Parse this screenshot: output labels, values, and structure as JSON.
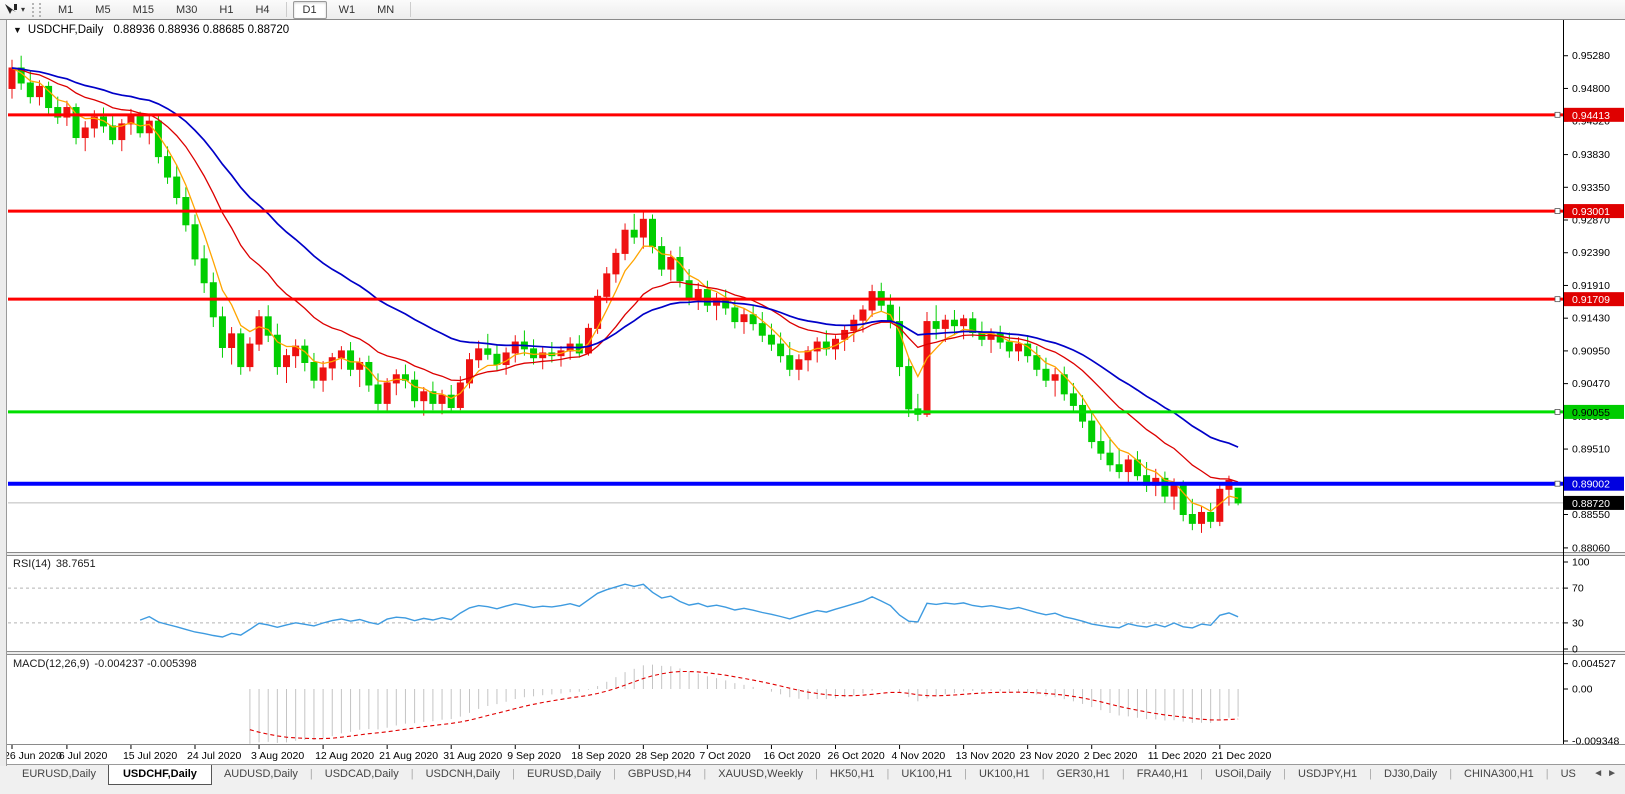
{
  "toolbar": {
    "timeframes": [
      "M1",
      "M5",
      "M15",
      "M30",
      "H1",
      "H4",
      "D1",
      "W1",
      "MN"
    ],
    "active": "D1"
  },
  "chart": {
    "title_symbol": "USDCHF,Daily",
    "ohlc": "0.88936 0.88936 0.88685 0.88720"
  },
  "rsi": {
    "name": "RSI(14)",
    "value": "38.7651"
  },
  "macd": {
    "name": "MACD(12,26,9)",
    "values": "-0.004237 -0.005398"
  },
  "tabs": {
    "items": [
      "EURUSD,Daily",
      "USDCHF,Daily",
      "AUDUSD,Daily",
      "USDCAD,Daily",
      "USDCNH,Daily",
      "EURUSD,Daily",
      "GBPUSD,H4",
      "XAUUSD,Weekly",
      "HK50,H1",
      "UK100,H1",
      "UK100,H1",
      "GER30,H1",
      "FRA40,H1",
      "USOil,Daily",
      "USDJPY,H1",
      "DJ30,Daily",
      "CHINA300,H1",
      "US"
    ],
    "active_index": 1,
    "scroll_left": "◄",
    "scroll_right": "►"
  },
  "chart_data": {
    "type": "candlestick",
    "symbol": "USDCHF",
    "timeframe": "Daily",
    "price_range": [
      0.88,
      0.9576
    ],
    "y_ticks": [
      "0.95280",
      "0.94800",
      "0.94320",
      "0.93830",
      "0.93350",
      "0.92870",
      "0.92390",
      "0.91910",
      "0.91430",
      "0.90950",
      "0.90470",
      "0.89990",
      "0.89510",
      "0.89030",
      "0.88550",
      "0.88060"
    ],
    "x_labels": [
      [
        0,
        "26 Jun 2020"
      ],
      [
        6,
        "6 Jul 2020"
      ],
      [
        13,
        "15 Jul 2020"
      ],
      [
        20,
        "24 Jul 2020"
      ],
      [
        27,
        "3 Aug 2020"
      ],
      [
        34,
        "12 Aug 2020"
      ],
      [
        41,
        "21 Aug 2020"
      ],
      [
        48,
        "31 Aug 2020"
      ],
      [
        55,
        "9 Sep 2020"
      ],
      [
        62,
        "18 Sep 2020"
      ],
      [
        69,
        "28 Sep 2020"
      ],
      [
        76,
        "7 Oct 2020"
      ],
      [
        83,
        "16 Oct 2020"
      ],
      [
        90,
        "26 Oct 2020"
      ],
      [
        97,
        "4 Nov 2020"
      ],
      [
        104,
        "13 Nov 2020"
      ],
      [
        111,
        "23 Nov 2020"
      ],
      [
        118,
        "2 Dec 2020"
      ],
      [
        125,
        "11 Dec 2020"
      ],
      [
        132,
        "21 Dec 2020"
      ]
    ],
    "hlines": [
      {
        "price": 0.94413,
        "label": "0.94413",
        "line": "#FF0000",
        "badge": "#DF0000",
        "text": "#FFFFFF",
        "w": 3
      },
      {
        "price": 0.93001,
        "label": "0.93001",
        "line": "#FF0000",
        "badge": "#DF0000",
        "text": "#FFFFFF",
        "w": 3
      },
      {
        "price": 0.91709,
        "label": "0.91709",
        "line": "#FF0000",
        "badge": "#DF0000",
        "text": "#FFFFFF",
        "w": 3
      },
      {
        "price": 0.90055,
        "label": "0.90055",
        "line": "#00DF00",
        "badge": "#00CC00",
        "text": "#000000",
        "w": 3
      },
      {
        "price": 0.89002,
        "label": "0.89002",
        "line": "#0000FF",
        "badge": "#0000E0",
        "text": "#FFFFFF",
        "w": 4
      }
    ],
    "current_price": {
      "price": 0.8872,
      "label": "0.88720",
      "line": "#BBBBBB",
      "badge": "#000000",
      "text": "#FFFFFF"
    },
    "colors": {
      "bull": "#EE1111",
      "bear": "#00CE00",
      "ma_fast": "#FFA500",
      "ma_mid": "#DC0000",
      "ma_slow": "#0000C8",
      "rsi_line": "#3E9BE0",
      "rsi_dash": "#B4B4B4",
      "macd_hist": "#C4C4C4",
      "macd_signal": "#E00000"
    },
    "ma_periods": {
      "fast": 5,
      "mid": 15,
      "slow": 30
    },
    "rsi": {
      "period": 14,
      "ticks": [
        "100",
        "70",
        "30",
        "0"
      ],
      "tick_vals": [
        100,
        70,
        30,
        0
      ],
      "dash_levels": [
        70,
        30
      ]
    },
    "macd": {
      "fast": 12,
      "slow": 26,
      "signal": 9,
      "axis_labels": [
        "0.004527",
        "0.00",
        "-0.009348"
      ],
      "axis_vals": [
        0.004527,
        0,
        -0.009348
      ]
    },
    "candles": [
      [
        0.948,
        0.9522,
        0.9465,
        0.951
      ],
      [
        0.951,
        0.9528,
        0.9478,
        0.9488
      ],
      [
        0.9488,
        0.9505,
        0.9458,
        0.9468
      ],
      [
        0.9468,
        0.9492,
        0.9455,
        0.9483
      ],
      [
        0.9483,
        0.949,
        0.9442,
        0.9452
      ],
      [
        0.9452,
        0.9468,
        0.9428,
        0.9438
      ],
      [
        0.9438,
        0.9462,
        0.9425,
        0.9452
      ],
      [
        0.9452,
        0.9458,
        0.9398,
        0.9408
      ],
      [
        0.9408,
        0.9432,
        0.9388,
        0.9422
      ],
      [
        0.9422,
        0.9448,
        0.9408,
        0.9438
      ],
      [
        0.9438,
        0.9452,
        0.9415,
        0.9425
      ],
      [
        0.9425,
        0.9442,
        0.9398,
        0.9405
      ],
      [
        0.9405,
        0.9435,
        0.9388,
        0.9428
      ],
      [
        0.9428,
        0.945,
        0.9412,
        0.944
      ],
      [
        0.944,
        0.9446,
        0.9408,
        0.9415
      ],
      [
        0.9415,
        0.9442,
        0.9398,
        0.9432
      ],
      [
        0.9432,
        0.944,
        0.937,
        0.938
      ],
      [
        0.938,
        0.9395,
        0.934,
        0.935
      ],
      [
        0.935,
        0.9368,
        0.931,
        0.932
      ],
      [
        0.932,
        0.9335,
        0.927,
        0.928
      ],
      [
        0.928,
        0.9295,
        0.922,
        0.923
      ],
      [
        0.923,
        0.925,
        0.918,
        0.9195
      ],
      [
        0.9195,
        0.921,
        0.913,
        0.9145
      ],
      [
        0.9145,
        0.916,
        0.9085,
        0.91
      ],
      [
        0.91,
        0.913,
        0.9075,
        0.912
      ],
      [
        0.912,
        0.9128,
        0.906,
        0.9072
      ],
      [
        0.9072,
        0.9115,
        0.9065,
        0.9105
      ],
      [
        0.9105,
        0.9155,
        0.9095,
        0.9145
      ],
      [
        0.9145,
        0.9162,
        0.9108,
        0.9118
      ],
      [
        0.9118,
        0.9135,
        0.906,
        0.9072
      ],
      [
        0.9072,
        0.9098,
        0.9048,
        0.9088
      ],
      [
        0.9088,
        0.9112,
        0.907,
        0.9102
      ],
      [
        0.9102,
        0.9112,
        0.9065,
        0.9078
      ],
      [
        0.9078,
        0.9092,
        0.904,
        0.9052
      ],
      [
        0.9052,
        0.908,
        0.9035,
        0.907
      ],
      [
        0.907,
        0.9092,
        0.9052,
        0.9085
      ],
      [
        0.9085,
        0.9102,
        0.9068,
        0.9095
      ],
      [
        0.9095,
        0.9108,
        0.9058,
        0.9068
      ],
      [
        0.9068,
        0.9085,
        0.9042,
        0.9078
      ],
      [
        0.9078,
        0.9088,
        0.9035,
        0.9045
      ],
      [
        0.9045,
        0.9062,
        0.9008,
        0.9018
      ],
      [
        0.9018,
        0.9055,
        0.9005,
        0.9048
      ],
      [
        0.9048,
        0.9068,
        0.903,
        0.906
      ],
      [
        0.906,
        0.9075,
        0.904,
        0.9052
      ],
      [
        0.9052,
        0.9065,
        0.9012,
        0.9022
      ],
      [
        0.9022,
        0.9042,
        0.9,
        0.9035
      ],
      [
        0.9035,
        0.905,
        0.9008,
        0.9018
      ],
      [
        0.9018,
        0.9038,
        0.9002,
        0.903
      ],
      [
        0.903,
        0.9045,
        0.9006,
        0.9012
      ],
      [
        0.9012,
        0.9058,
        0.9008,
        0.9048
      ],
      [
        0.9048,
        0.9092,
        0.904,
        0.9082
      ],
      [
        0.9082,
        0.911,
        0.907,
        0.9098
      ],
      [
        0.9098,
        0.912,
        0.9082,
        0.909
      ],
      [
        0.909,
        0.9105,
        0.9065,
        0.9075
      ],
      [
        0.9075,
        0.91,
        0.906,
        0.9092
      ],
      [
        0.9092,
        0.9118,
        0.9078,
        0.9108
      ],
      [
        0.9108,
        0.9125,
        0.9088,
        0.9098
      ],
      [
        0.9098,
        0.9112,
        0.9075,
        0.9085
      ],
      [
        0.9085,
        0.91,
        0.9068,
        0.9092
      ],
      [
        0.9092,
        0.9108,
        0.9078,
        0.9088
      ],
      [
        0.9088,
        0.9102,
        0.9072,
        0.9095
      ],
      [
        0.9095,
        0.9115,
        0.9082,
        0.9105
      ],
      [
        0.9105,
        0.9118,
        0.9085,
        0.9092
      ],
      [
        0.9092,
        0.9135,
        0.9088,
        0.9128
      ],
      [
        0.9128,
        0.9185,
        0.912,
        0.9175
      ],
      [
        0.9175,
        0.9218,
        0.9165,
        0.9208
      ],
      [
        0.9208,
        0.9245,
        0.9195,
        0.9238
      ],
      [
        0.9238,
        0.9282,
        0.9228,
        0.9272
      ],
      [
        0.9272,
        0.9296,
        0.9252,
        0.9262
      ],
      [
        0.9262,
        0.93,
        0.9245,
        0.9288
      ],
      [
        0.9288,
        0.9295,
        0.9238,
        0.9248
      ],
      [
        0.9248,
        0.9262,
        0.9205,
        0.9215
      ],
      [
        0.9215,
        0.9242,
        0.9198,
        0.9232
      ],
      [
        0.9232,
        0.9248,
        0.9188,
        0.9198
      ],
      [
        0.9198,
        0.9215,
        0.9162,
        0.9172
      ],
      [
        0.9172,
        0.9195,
        0.9155,
        0.9185
      ],
      [
        0.9185,
        0.9198,
        0.9152,
        0.9162
      ],
      [
        0.9162,
        0.918,
        0.914,
        0.9172
      ],
      [
        0.9172,
        0.9185,
        0.9148,
        0.9158
      ],
      [
        0.9158,
        0.9172,
        0.9128,
        0.9138
      ],
      [
        0.9138,
        0.9158,
        0.912,
        0.9148
      ],
      [
        0.9148,
        0.9162,
        0.9125,
        0.9135
      ],
      [
        0.9135,
        0.9152,
        0.9108,
        0.9118
      ],
      [
        0.9118,
        0.9135,
        0.9095,
        0.9105
      ],
      [
        0.9105,
        0.9122,
        0.9078,
        0.9088
      ],
      [
        0.9088,
        0.9108,
        0.9058,
        0.9068
      ],
      [
        0.9068,
        0.909,
        0.9052,
        0.9082
      ],
      [
        0.9082,
        0.9102,
        0.9065,
        0.9095
      ],
      [
        0.9095,
        0.9115,
        0.9078,
        0.9108
      ],
      [
        0.9108,
        0.9125,
        0.9088,
        0.9098
      ],
      [
        0.9098,
        0.9118,
        0.9082,
        0.9112
      ],
      [
        0.9112,
        0.9132,
        0.9095,
        0.9125
      ],
      [
        0.9125,
        0.9148,
        0.9108,
        0.914
      ],
      [
        0.914,
        0.9162,
        0.9122,
        0.9155
      ],
      [
        0.9155,
        0.9192,
        0.9145,
        0.9182
      ],
      [
        0.9182,
        0.9195,
        0.9152,
        0.9162
      ],
      [
        0.9162,
        0.9178,
        0.9128,
        0.9138
      ],
      [
        0.9138,
        0.916,
        0.9058,
        0.9072
      ],
      [
        0.9072,
        0.9085,
        0.8998,
        0.901
      ],
      [
        0.901,
        0.9032,
        0.8992,
        0.9002
      ],
      [
        0.9002,
        0.9152,
        0.8998,
        0.9138
      ],
      [
        0.9138,
        0.9162,
        0.9112,
        0.9128
      ],
      [
        0.9128,
        0.9148,
        0.9108,
        0.914
      ],
      [
        0.914,
        0.9155,
        0.9118,
        0.9132
      ],
      [
        0.9132,
        0.9148,
        0.9112,
        0.9142
      ],
      [
        0.9142,
        0.9152,
        0.9115,
        0.9122
      ],
      [
        0.9122,
        0.9138,
        0.9102,
        0.9112
      ],
      [
        0.9112,
        0.9128,
        0.9092,
        0.912
      ],
      [
        0.912,
        0.9132,
        0.9098,
        0.9108
      ],
      [
        0.9108,
        0.9122,
        0.9085,
        0.9095
      ],
      [
        0.9095,
        0.9115,
        0.908,
        0.9105
      ],
      [
        0.9105,
        0.9118,
        0.9078,
        0.9088
      ],
      [
        0.9088,
        0.9102,
        0.9058,
        0.9068
      ],
      [
        0.9068,
        0.9085,
        0.9042,
        0.9052
      ],
      [
        0.9052,
        0.907,
        0.9028,
        0.906
      ],
      [
        0.906,
        0.9072,
        0.9022,
        0.9032
      ],
      [
        0.9032,
        0.9048,
        0.9005,
        0.9015
      ],
      [
        0.9015,
        0.903,
        0.8982,
        0.8992
      ],
      [
        0.8992,
        0.9005,
        0.8952,
        0.8962
      ],
      [
        0.8962,
        0.8985,
        0.8935,
        0.8945
      ],
      [
        0.8945,
        0.8968,
        0.8918,
        0.8928
      ],
      [
        0.8928,
        0.8952,
        0.8908,
        0.8918
      ],
      [
        0.8918,
        0.8942,
        0.8902,
        0.8935
      ],
      [
        0.8935,
        0.8948,
        0.8905,
        0.8912
      ],
      [
        0.8912,
        0.8932,
        0.8888,
        0.8898
      ],
      [
        0.8898,
        0.8922,
        0.8882,
        0.8908
      ],
      [
        0.8908,
        0.8918,
        0.8872,
        0.8882
      ],
      [
        0.8882,
        0.8908,
        0.8862,
        0.8898
      ],
      [
        0.8898,
        0.8905,
        0.8845,
        0.8855
      ],
      [
        0.8855,
        0.8878,
        0.8832,
        0.8842
      ],
      [
        0.8842,
        0.8868,
        0.8828,
        0.8858
      ],
      [
        0.8858,
        0.8872,
        0.8835,
        0.8845
      ],
      [
        0.8845,
        0.8902,
        0.8838,
        0.8892
      ],
      [
        0.8892,
        0.8912,
        0.8868,
        0.8905
      ],
      [
        0.88936,
        0.88936,
        0.88685,
        0.8872
      ]
    ]
  }
}
